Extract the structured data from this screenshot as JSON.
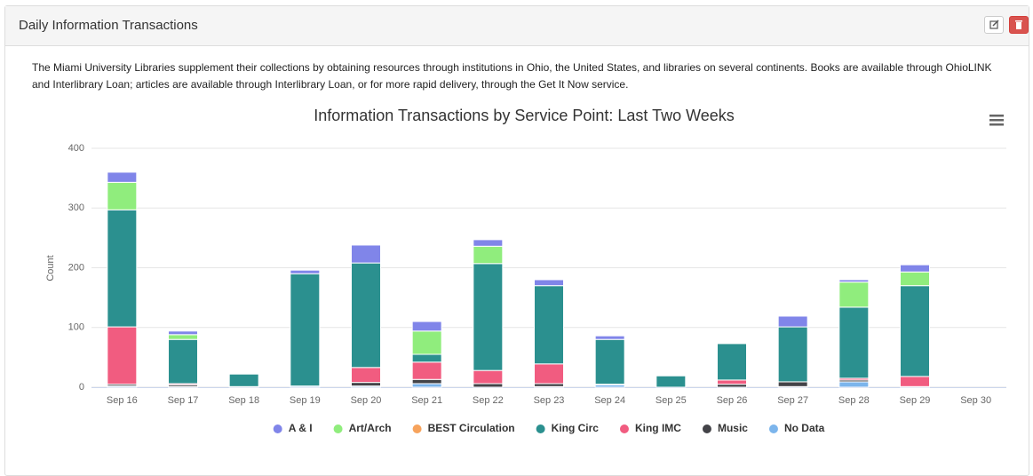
{
  "header": {
    "title": "Daily Information Transactions"
  },
  "description": "The Miami University Libraries supplement their collections by obtaining resources through institutions in Ohio, the United States, and libraries on several continents. Books are available through OhioLINK and Interlibrary Loan; articles are available through Interlibrary Loan, or for more rapid delivery, through the Get It Now service.",
  "chart_data": {
    "type": "stacked_bar",
    "title": "Information Transactions by Service Point: Last Two Weeks",
    "y_label": "Count",
    "categories": [
      "Sep 16",
      "Sep 17",
      "Sep 18",
      "Sep 19",
      "Sep 20",
      "Sep 21",
      "Sep 22",
      "Sep 23",
      "Sep 24",
      "Sep 25",
      "Sep 26",
      "Sep 27",
      "Sep 28",
      "Sep 29",
      "Sep 30"
    ],
    "series": [
      {
        "name": "A & I",
        "color": "#8085e9",
        "values": [
          17,
          6,
          0,
          6,
          30,
          16,
          11,
          10,
          6,
          0,
          0,
          18,
          4,
          12,
          0
        ]
      },
      {
        "name": "Art/Arch",
        "color": "#90ed7d",
        "values": [
          46,
          8,
          0,
          0,
          0,
          39,
          29,
          0,
          0,
          0,
          0,
          0,
          42,
          23,
          0
        ]
      },
      {
        "name": "BEST Circulation",
        "color": "#f7a35c",
        "values": [
          0,
          0,
          0,
          0,
          0,
          0,
          0,
          0,
          0,
          0,
          0,
          0,
          0,
          0,
          0
        ]
      },
      {
        "name": "King Circ",
        "color": "#2b908f",
        "values": [
          196,
          74,
          21,
          188,
          175,
          13,
          179,
          131,
          75,
          19,
          61,
          92,
          119,
          152,
          0
        ]
      },
      {
        "name": "King IMC",
        "color": "#f15c80",
        "values": [
          96,
          2,
          0,
          0,
          25,
          29,
          22,
          33,
          0,
          0,
          7,
          0,
          3,
          17,
          0
        ]
      },
      {
        "name": "Music",
        "color": "#434348",
        "values": [
          3,
          3,
          1,
          0,
          6,
          7,
          6,
          5,
          1,
          0,
          5,
          8,
          3,
          1,
          0
        ]
      },
      {
        "name": "No Data",
        "color": "#7cb5ec",
        "values": [
          2,
          1,
          0,
          2,
          2,
          6,
          0,
          1,
          4,
          0,
          0,
          1,
          9,
          0,
          0
        ]
      }
    ],
    "ylim": [
      0,
      400
    ],
    "yticks": [
      0,
      100,
      200,
      300,
      400
    ],
    "grid": true,
    "legend": "bottom"
  }
}
